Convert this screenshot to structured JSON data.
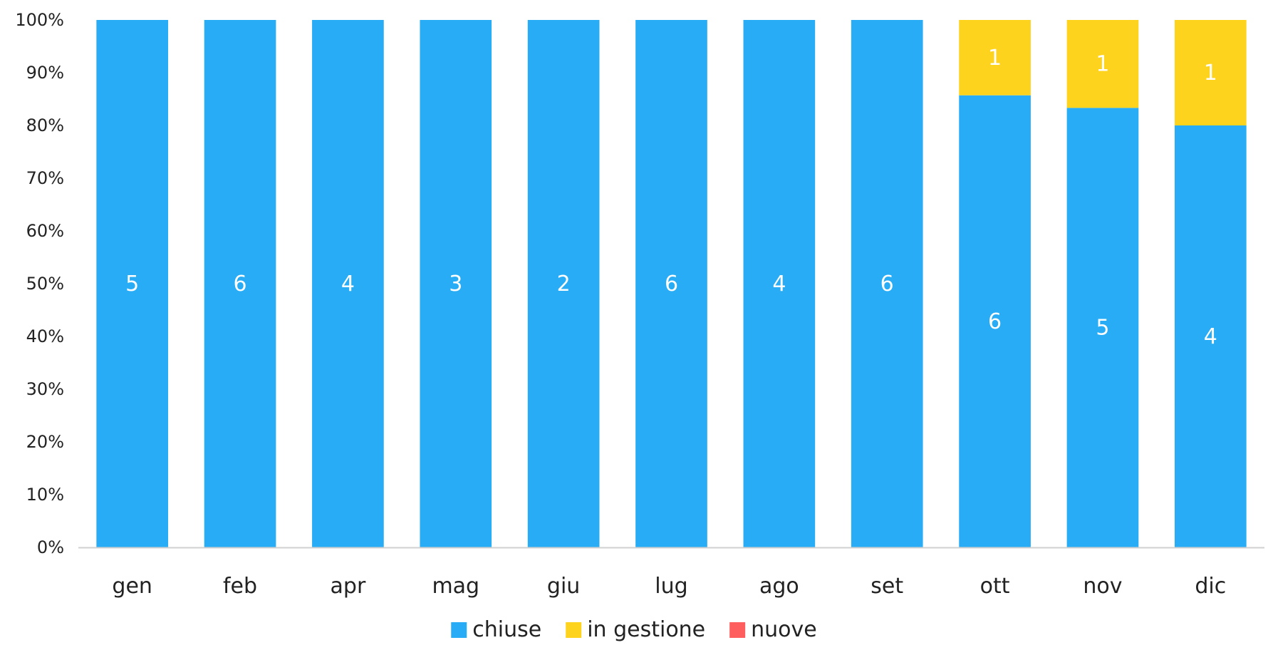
{
  "chart_data": {
    "type": "bar",
    "stacked": true,
    "normalized": true,
    "categories": [
      "gen",
      "feb",
      "apr",
      "mag",
      "giu",
      "lug",
      "ago",
      "set",
      "ott",
      "nov",
      "dic"
    ],
    "series": [
      {
        "name": "chiuse",
        "color": "#27ACF5",
        "values": [
          5,
          6,
          4,
          3,
          2,
          6,
          4,
          6,
          6,
          5,
          4
        ]
      },
      {
        "name": "in gestione",
        "color": "#FDD31D",
        "values": [
          0,
          0,
          0,
          0,
          0,
          0,
          0,
          0,
          1,
          1,
          1
        ]
      },
      {
        "name": "nuove",
        "color": "#FE5E5E",
        "values": [
          0,
          0,
          0,
          0,
          0,
          0,
          0,
          0,
          0,
          0,
          0
        ]
      }
    ],
    "yticks": [
      "0%",
      "10%",
      "20%",
      "30%",
      "40%",
      "50%",
      "60%",
      "70%",
      "80%",
      "90%",
      "100%"
    ],
    "ylim": [
      0,
      100
    ],
    "grid": false,
    "legend": "bottom"
  }
}
